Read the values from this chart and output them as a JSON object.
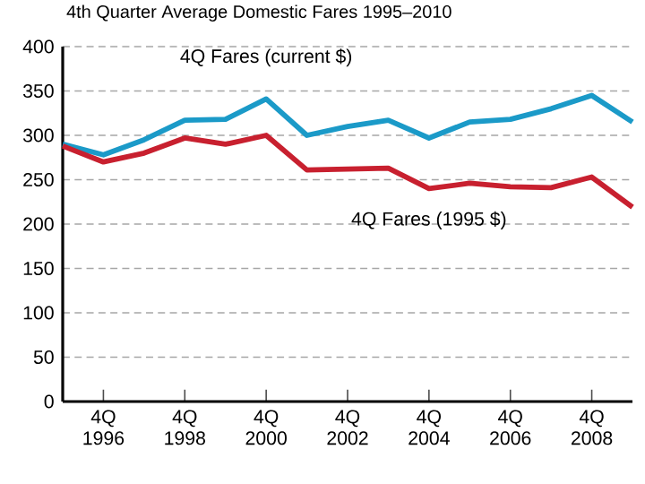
{
  "chart_data": {
    "type": "line",
    "title": "4th Quarter Average Domestic Fares 1995–2010",
    "categories": [
      null,
      "4Q 1996",
      null,
      "4Q 1998",
      null,
      "4Q 2000",
      null,
      "4Q 2002",
      null,
      "4Q 2004",
      null,
      "4Q 2006",
      null,
      "4Q 2008",
      null
    ],
    "series": [
      {
        "name": "4Q Fares (current $)",
        "color": "#1b9ac8",
        "values": [
          290,
          278,
          295,
          317,
          318,
          341,
          300,
          310,
          317,
          297,
          315,
          318,
          330,
          345,
          315
        ]
      },
      {
        "name": "4Q Fares (1995 $)",
        "color": "#c8202f",
        "values": [
          288,
          270,
          280,
          297,
          290,
          300,
          261,
          262,
          263,
          240,
          246,
          242,
          241,
          253,
          219
        ]
      }
    ],
    "ylim": [
      0,
      400
    ],
    "yticks": [
      0,
      50,
      100,
      150,
      200,
      250,
      300,
      350,
      400
    ],
    "grid": "y",
    "legend": false,
    "marker": "none",
    "line_style": "solid"
  }
}
